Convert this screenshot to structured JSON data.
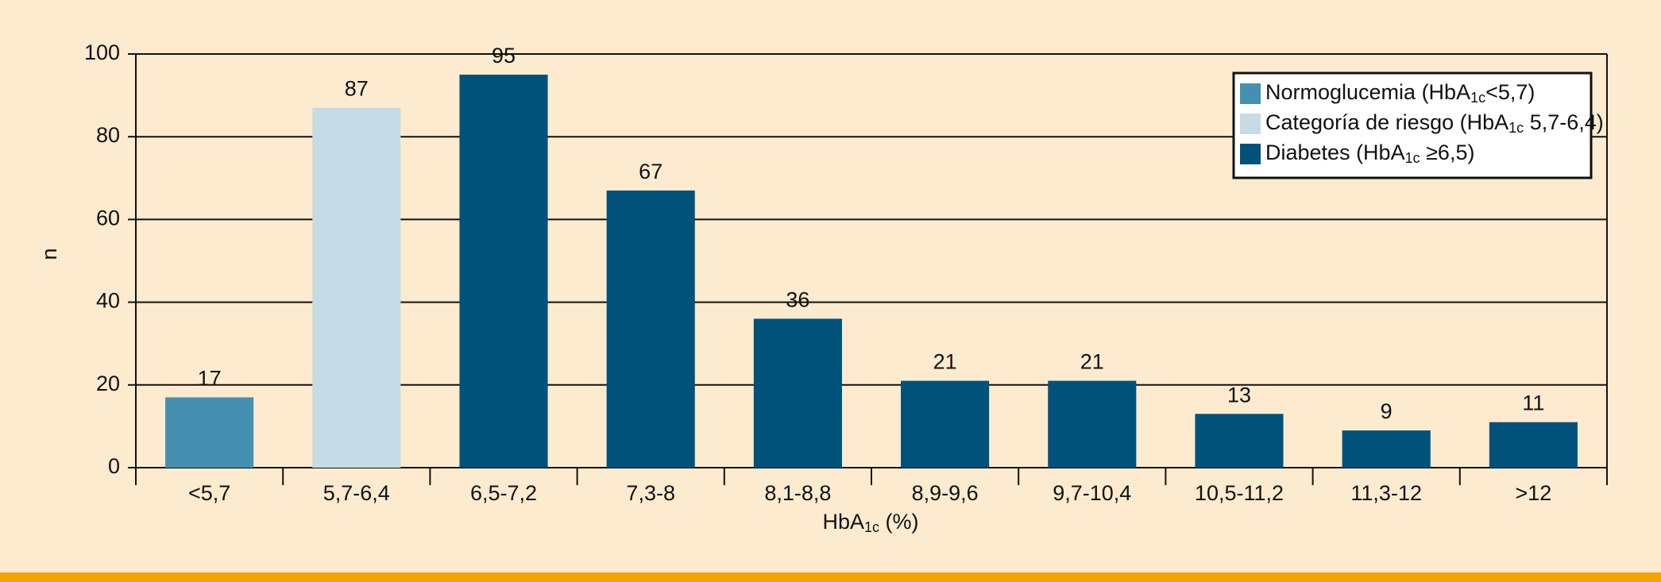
{
  "chart_data": {
    "type": "bar",
    "x_label": "HbA1c (%)",
    "y_label": "n",
    "categories": [
      "<5,7",
      "5,7-6,4",
      "6,5-7,2",
      "7,3-8",
      "8,1-8,8",
      "8,9-9,6",
      "9,7-10,4",
      "10,5-11,2",
      "11,3-12",
      ">12"
    ],
    "series": [
      {
        "name": "Normoglucemia (HbA1c<5,7)",
        "color": "#4590b0",
        "values": [
          17,
          null,
          null,
          null,
          null,
          null,
          null,
          null,
          null,
          null
        ]
      },
      {
        "name": "Categoría de riesgo (HbA1c 5,7-6,4)",
        "color": "#c5dbe6",
        "values": [
          null,
          87,
          null,
          null,
          null,
          null,
          null,
          null,
          null,
          null
        ]
      },
      {
        "name": "Diabetes (HbA1c ≥6,5)",
        "color": "#00527a",
        "values": [
          null,
          null,
          95,
          67,
          36,
          21,
          21,
          13,
          9,
          11
        ]
      }
    ],
    "ylim": [
      0,
      100
    ],
    "yticks": [
      0,
      20,
      40,
      60,
      80,
      100
    ],
    "grid": true,
    "legend": "top-right"
  }
}
